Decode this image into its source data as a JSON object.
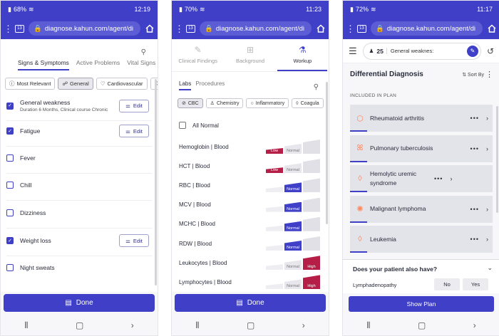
{
  "phones": [
    {
      "status": {
        "battery": "68%",
        "time": "12:19"
      },
      "browser": {
        "tabs": "13",
        "url": "diagnose.kahun.com/agent/di"
      },
      "tabs": [
        {
          "label": "Signs & Symptoms",
          "active": true
        },
        {
          "label": "Active Problems",
          "active": false
        },
        {
          "label": "Vital Signs",
          "active": false
        }
      ],
      "chips": [
        "Most Relevant",
        "General",
        "Cardiovascular"
      ],
      "symptoms": [
        {
          "label": "General weakness",
          "sub": "Duration 6 Months, Clinical course Chronic",
          "checked": true,
          "edit": true
        },
        {
          "label": "Fatigue",
          "sub": "",
          "checked": true,
          "edit": true
        },
        {
          "label": "Fever",
          "sub": "",
          "checked": false,
          "edit": false
        },
        {
          "label": "Chill",
          "sub": "",
          "checked": false,
          "edit": false
        },
        {
          "label": "Dizziness",
          "sub": "",
          "checked": false,
          "edit": false
        },
        {
          "label": "Weight loss",
          "sub": "",
          "checked": true,
          "edit": true
        },
        {
          "label": "Night sweats",
          "sub": "",
          "checked": false,
          "edit": false
        }
      ],
      "edit_label": "Edit",
      "done_label": "Done"
    },
    {
      "status": {
        "battery": "70%",
        "time": "11:23"
      },
      "browser": {
        "tabs": "13",
        "url": "diagnose.kahun.com/agent/di"
      },
      "categories": [
        {
          "label": "Clinical Findings",
          "active": false
        },
        {
          "label": "Background",
          "active": false
        },
        {
          "label": "Workup",
          "active": true
        }
      ],
      "labtabs": [
        "Labs",
        "Procedures"
      ],
      "chips": [
        "CBC",
        "Chemistry",
        "Inflammatory",
        "Coagula"
      ],
      "all_normal": "All Normal",
      "gauge_labels": {
        "low": "Low",
        "normal": "Normal",
        "high": "High"
      },
      "labs": [
        {
          "name": "Hemoglobin | Blood",
          "state": "low"
        },
        {
          "name": "HCT | Blood",
          "state": "low"
        },
        {
          "name": "RBC | Blood",
          "state": "normal"
        },
        {
          "name": "MCV | Blood",
          "state": "normal"
        },
        {
          "name": "MCHC | Blood",
          "state": "normal"
        },
        {
          "name": "RDW | Blood",
          "state": "normal"
        },
        {
          "name": "Leukocytes | Blood",
          "state": "high"
        },
        {
          "name": "Lymphocytes | Blood",
          "state": "high"
        }
      ],
      "done_label": "Done"
    },
    {
      "status": {
        "battery": "72%",
        "time": "11:17"
      },
      "browser": {
        "tabs": "13",
        "url": "diagnose.kahun.com/agent/di"
      },
      "search": {
        "count": "25",
        "query": "General weaknes:"
      },
      "title": "Differential Diagnosis",
      "sort_label": "Sort By",
      "included_label": "INCLUDED IN PLAN",
      "diagnoses": [
        {
          "label": "Rheumatoid arthritis",
          "icon": "joint-icon"
        },
        {
          "label": "Pulmonary tuberculosis",
          "icon": "lungs-icon"
        },
        {
          "label": "Hemolytic uremic syndrome",
          "icon": "drop-icon"
        },
        {
          "label": "Malignant lymphoma",
          "icon": "cell-icon"
        },
        {
          "label": "Leukemia",
          "icon": "drop-icon"
        }
      ],
      "question": "Does your patient also have?",
      "question_symptom": "Lymphadenopathy",
      "no_label": "No",
      "yes_label": "Yes",
      "show_plan": "Show Plan"
    }
  ]
}
